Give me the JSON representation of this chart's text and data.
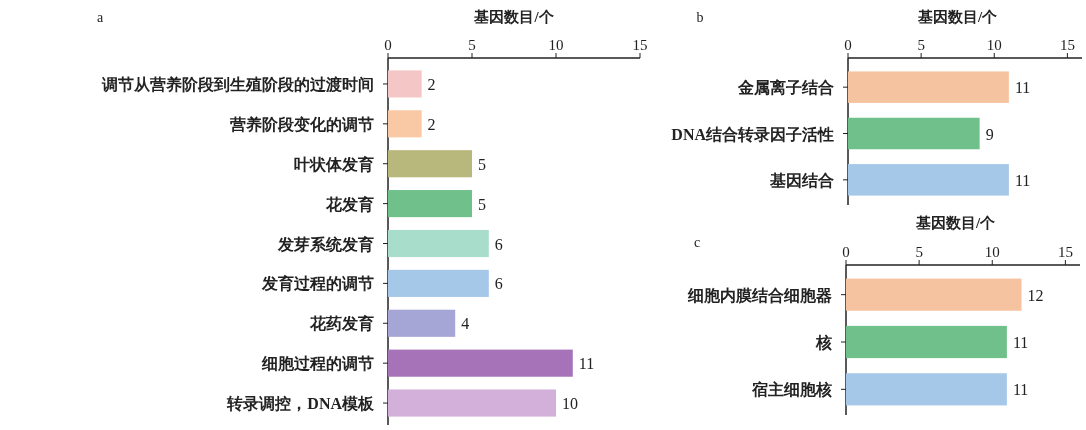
{
  "chart_data": [
    {
      "type": "bar",
      "orientation": "horizontal",
      "title": "a",
      "xlabel": "基因数目/个",
      "categories": [
        "调节从营养阶段到生殖阶段的过渡时间",
        "营养阶段变化的调节",
        "叶状体发育",
        "花发育",
        "发芽系统发育",
        "发育过程的调节",
        "花药发育",
        "细胞过程的调节",
        "转录调控，DNA模板"
      ],
      "values": [
        2,
        2,
        5,
        5,
        6,
        6,
        4,
        11,
        10
      ],
      "colors": [
        "#f4c6c6",
        "#f8c9a4",
        "#b8b77c",
        "#6fc08a",
        "#a8dccb",
        "#a6c8e8",
        "#a5a5d6",
        "#a673b8",
        "#d3b0da"
      ],
      "xlim": [
        0,
        15
      ],
      "xticks": [
        0,
        5,
        10,
        15
      ],
      "data_labels": true
    },
    {
      "type": "bar",
      "orientation": "horizontal",
      "title": "b",
      "xlabel": "基因数目/个",
      "categories": [
        "金属离子结合",
        "DNA结合转录因子活性",
        "基因结合"
      ],
      "values": [
        11,
        9,
        11
      ],
      "colors": [
        "#f6c3a0",
        "#6fc08a",
        "#a6c8e8"
      ],
      "xlim": [
        0,
        16
      ],
      "xticks": [
        0,
        5,
        10,
        15
      ],
      "data_labels": true
    },
    {
      "type": "bar",
      "orientation": "horizontal",
      "title": "c",
      "xlabel": "基因数目/个",
      "categories": [
        "细胞内膜结合细胞器",
        "核",
        "宿主细胞核"
      ],
      "values": [
        12,
        11,
        11
      ],
      "colors": [
        "#f6c3a0",
        "#6fc08a",
        "#a6c8e8"
      ],
      "xlim": [
        0,
        16
      ],
      "xticks": [
        0,
        5,
        10,
        15
      ],
      "data_labels": true
    }
  ]
}
